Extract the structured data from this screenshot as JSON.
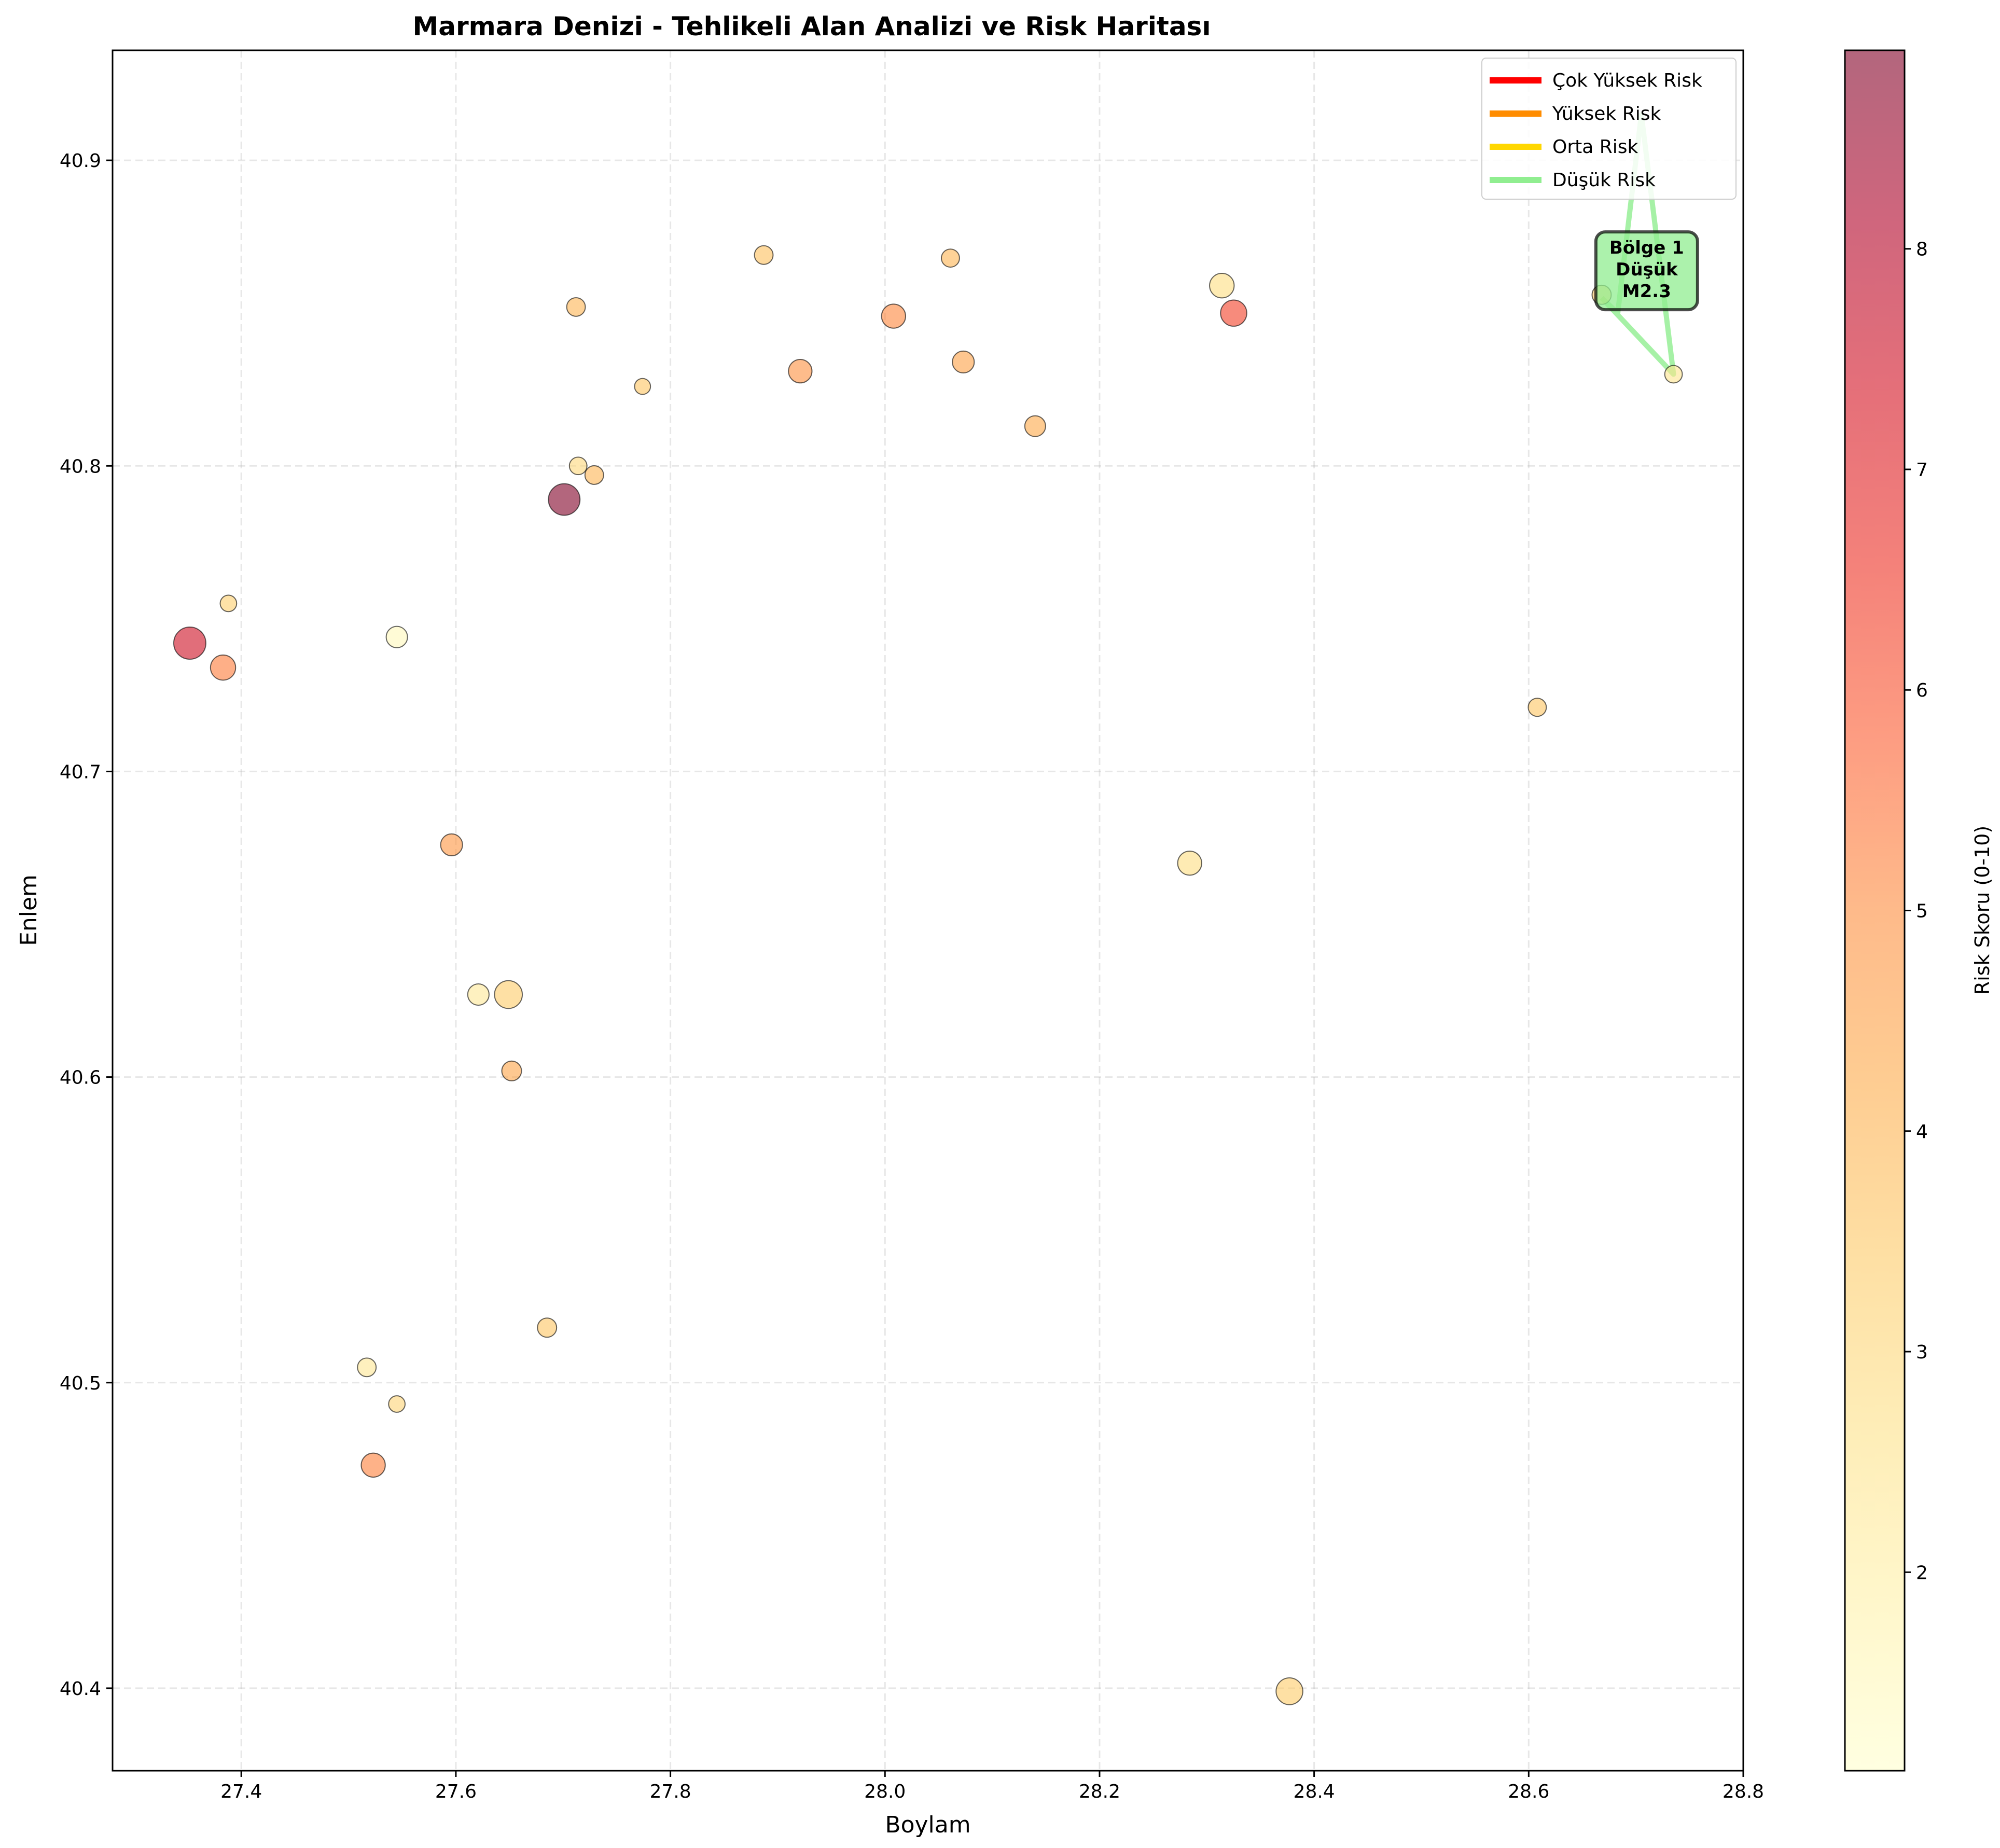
{
  "chart_data": {
    "type": "scatter",
    "title": "Marmara Denizi - Tehlikeli Alan Analizi ve Risk Haritası",
    "xlabel": "Boylam",
    "ylabel": "Enlem",
    "xlim": [
      27.28,
      28.8
    ],
    "ylim": [
      40.373,
      40.936
    ],
    "xticks": [
      27.4,
      27.6,
      27.8,
      28.0,
      28.2,
      28.4,
      28.6,
      28.8
    ],
    "xtick_labels": [
      "27.4",
      "27.6",
      "27.8",
      "28.0",
      "28.2",
      "28.4",
      "28.6",
      "28.8"
    ],
    "yticks": [
      40.4,
      40.5,
      40.6,
      40.7,
      40.8,
      40.9
    ],
    "ytick_labels": [
      "40.4",
      "40.5",
      "40.6",
      "40.7",
      "40.8",
      "40.9"
    ],
    "grid": true,
    "colorbar": {
      "label": "Risk Skoru (0-10)",
      "range": [
        1.1,
        8.9
      ],
      "ticks": [
        2,
        3,
        4,
        5,
        6,
        7,
        8
      ],
      "tick_labels": [
        "2",
        "3",
        "4",
        "5",
        "6",
        "7",
        "8"
      ],
      "colormap": "YlOrRd",
      "stops": [
        "#ffffcc",
        "#fff1a8",
        "#fee187",
        "#feca66",
        "#feab49",
        "#fd8c3c",
        "#fc5b2e",
        "#ed2e21",
        "#d41020",
        "#b00026",
        "#800026"
      ]
    },
    "legend": {
      "placement": "top-right",
      "entries": [
        {
          "label": "Çok Yüksek Risk",
          "color": "#ff0000"
        },
        {
          "label": "Yüksek Risk",
          "color": "#ff8c00"
        },
        {
          "label": "Orta Risk",
          "color": "#ffd700"
        },
        {
          "label": "Düşük Risk",
          "color": "#90ee90"
        }
      ]
    },
    "zone": {
      "risk_level": "Düşük",
      "color": "#90ee90",
      "polygon": [
        [
          28.668,
          40.855
        ],
        [
          28.735,
          40.83
        ],
        [
          28.705,
          40.915
        ],
        [
          28.683,
          40.85
        ],
        [
          28.668,
          40.855
        ]
      ],
      "label_lines": [
        "Bölge 1",
        "Düşük",
        "M2.3"
      ],
      "label_position": [
        28.71,
        40.863
      ]
    },
    "points": [
      {
        "x": 27.352,
        "y": 40.742,
        "risk": 7.5,
        "magnitude": 4.8
      },
      {
        "x": 27.383,
        "y": 40.734,
        "risk": 5.3,
        "magnitude": 3.5
      },
      {
        "x": 27.388,
        "y": 40.755,
        "risk": 3.3,
        "magnitude": 1.9
      },
      {
        "x": 27.545,
        "y": 40.744,
        "risk": 1.5,
        "magnitude": 2.8
      },
      {
        "x": 27.701,
        "y": 40.789,
        "risk": 8.9,
        "magnitude": 4.7
      },
      {
        "x": 27.712,
        "y": 40.852,
        "risk": 4.0,
        "magnitude": 2.3
      },
      {
        "x": 27.714,
        "y": 40.8,
        "risk": 3.0,
        "magnitude": 2.1
      },
      {
        "x": 27.729,
        "y": 40.797,
        "risk": 4.0,
        "magnitude": 2.3
      },
      {
        "x": 27.774,
        "y": 40.826,
        "risk": 3.6,
        "magnitude": 1.8
      },
      {
        "x": 27.887,
        "y": 40.869,
        "risk": 3.7,
        "magnitude": 2.3
      },
      {
        "x": 27.921,
        "y": 40.831,
        "risk": 4.9,
        "magnitude": 3.2
      },
      {
        "x": 28.008,
        "y": 40.849,
        "risk": 5.1,
        "magnitude": 3.3
      },
      {
        "x": 28.061,
        "y": 40.868,
        "risk": 4.0,
        "magnitude": 2.2
      },
      {
        "x": 28.073,
        "y": 40.834,
        "risk": 4.5,
        "magnitude": 2.9
      },
      {
        "x": 28.14,
        "y": 40.813,
        "risk": 4.3,
        "magnitude": 2.7
      },
      {
        "x": 28.314,
        "y": 40.859,
        "risk": 2.8,
        "magnitude": 3.4
      },
      {
        "x": 28.325,
        "y": 40.85,
        "risk": 6.3,
        "magnitude": 3.7
      },
      {
        "x": 28.608,
        "y": 40.721,
        "risk": 3.6,
        "magnitude": 2.2
      },
      {
        "x": 28.284,
        "y": 40.67,
        "risk": 2.8,
        "magnitude": 3.3
      },
      {
        "x": 28.377,
        "y": 40.399,
        "risk": 3.4,
        "magnitude": 3.8
      },
      {
        "x": 27.596,
        "y": 40.676,
        "risk": 4.8,
        "magnitude": 2.9
      },
      {
        "x": 27.621,
        "y": 40.627,
        "risk": 2.3,
        "magnitude": 2.8
      },
      {
        "x": 27.649,
        "y": 40.627,
        "risk": 3.4,
        "magnitude": 4.0
      },
      {
        "x": 27.652,
        "y": 40.602,
        "risk": 4.4,
        "magnitude": 2.5
      },
      {
        "x": 27.685,
        "y": 40.518,
        "risk": 3.6,
        "magnitude": 2.4
      },
      {
        "x": 27.517,
        "y": 40.505,
        "risk": 2.4,
        "magnitude": 2.3
      },
      {
        "x": 27.545,
        "y": 40.493,
        "risk": 3.1,
        "magnitude": 1.9
      },
      {
        "x": 27.523,
        "y": 40.473,
        "risk": 5.2,
        "magnitude": 3.3
      },
      {
        "x": 28.668,
        "y": 40.856,
        "risk": 3.5,
        "magnitude": 2.4
      },
      {
        "x": 28.735,
        "y": 40.83,
        "risk": 2.5,
        "magnitude": 2.1
      }
    ]
  }
}
